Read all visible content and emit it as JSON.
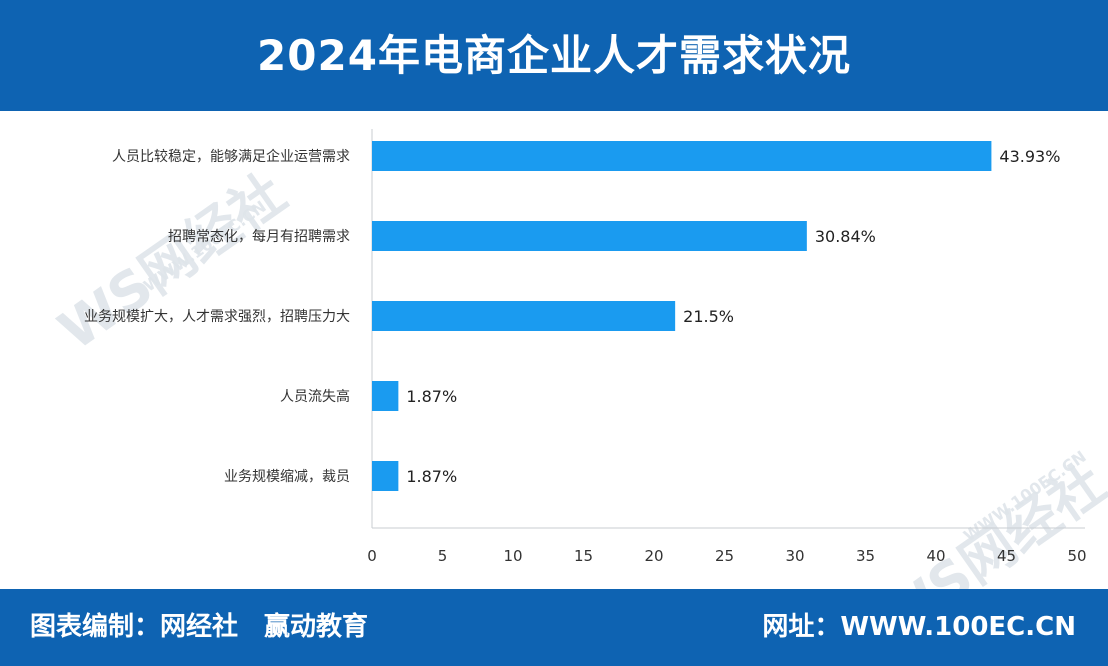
{
  "header": {
    "title": "2024年电商企业人才需求状况"
  },
  "footer": {
    "label": "图表编制：网经社",
    "partner": "赢动教育",
    "site": "网址：WWW.100EC.CN"
  },
  "watermark": {
    "logo": "WS网经社",
    "url": "WWW.100EC.CN"
  },
  "colors": {
    "bar": "#1a9bf0",
    "header": "#0e63b2",
    "axis": "#c8cdd2"
  },
  "chart_data": {
    "type": "bar",
    "orientation": "horizontal",
    "categories": [
      "人员比较稳定，能够满足企业运营需求",
      "招聘常态化，每月有招聘需求",
      "业务规模扩大，人才需求强烈，招聘压力大",
      "人员流失高",
      "业务规模缩减，裁员"
    ],
    "values": [
      43.93,
      30.84,
      21.5,
      1.87,
      1.87
    ],
    "value_labels": [
      "43.93%",
      "30.84%",
      "21.5%",
      "1.87%",
      "1.87%"
    ],
    "xlim": [
      0,
      50
    ],
    "xticks": [
      0,
      5,
      10,
      15,
      20,
      25,
      30,
      35,
      40,
      45,
      50
    ],
    "grid": false,
    "legend": "none"
  }
}
